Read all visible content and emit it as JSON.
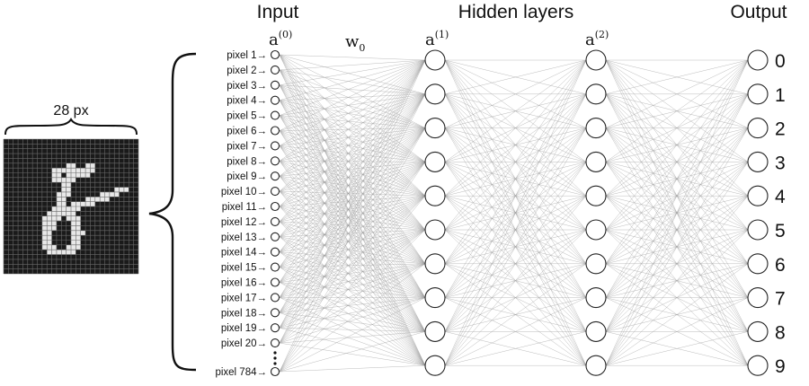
{
  "headers": {
    "input": "Input",
    "hidden": "Hidden layers",
    "output": "Output"
  },
  "layer_labels": {
    "a0": "a",
    "a0_sup": "(0)",
    "a1": "a",
    "a1_sup": "(1)",
    "a2": "a",
    "a2_sup": "(2)",
    "w0": "w",
    "w0_sub": "0"
  },
  "image": {
    "size_label": "28 px",
    "grid_cells": 28
  },
  "input_pixels": [
    "pixel 1",
    "pixel 2",
    "pixel 3",
    "pixel 4",
    "pixel 5",
    "pixel 6",
    "pixel 7",
    "pixel 8",
    "pixel 9",
    "pixel 10",
    "pixel 11",
    "pixel 12",
    "pixel 13",
    "pixel 14",
    "pixel 15",
    "pixel 16",
    "pixel 17",
    "pixel 18",
    "pixel 19",
    "pixel 20"
  ],
  "last_pixel": "pixel 784",
  "arrow_glyph": "→",
  "output_labels": [
    "0",
    "1",
    "2",
    "3",
    "4",
    "5",
    "6",
    "7",
    "8",
    "9"
  ],
  "hidden_units_per_layer": 10,
  "colors": {
    "edge": "#9a9a9a",
    "node_stroke": "#222222",
    "grid_bg": "#1a1a1a",
    "grid_line": "#6a6a6a",
    "stroke_pixel": "#e8e8e8"
  }
}
